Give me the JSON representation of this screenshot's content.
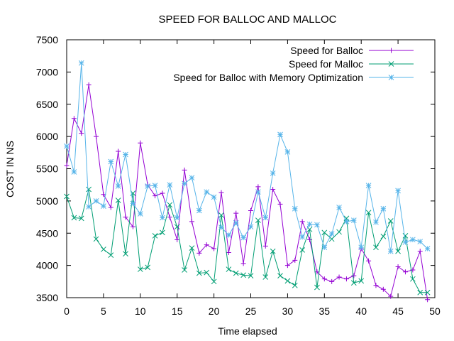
{
  "chart_data": {
    "type": "line",
    "title": "SPEED FOR BALLOC AND MALLOC",
    "xlabel": "Time elapsed",
    "ylabel": "COST IN NS",
    "xlim": [
      0,
      50
    ],
    "ylim": [
      3500,
      7500
    ],
    "xticks": [
      0,
      5,
      10,
      15,
      20,
      25,
      30,
      35,
      40,
      45,
      50
    ],
    "yticks": [
      3500,
      4000,
      4500,
      5000,
      5500,
      6000,
      6500,
      7000,
      7500
    ],
    "grid": false,
    "legend_position": "top-right",
    "x": [
      0,
      1,
      2,
      3,
      4,
      5,
      6,
      7,
      8,
      9,
      10,
      11,
      12,
      13,
      14,
      15,
      16,
      17,
      18,
      19,
      20,
      21,
      22,
      23,
      24,
      25,
      26,
      27,
      28,
      29,
      30,
      31,
      32,
      33,
      34,
      35,
      36,
      37,
      38,
      39,
      40,
      41,
      42,
      43,
      44,
      45,
      46,
      47,
      48,
      49
    ],
    "series": [
      {
        "name": "Speed for Balloc",
        "color": "#9400d3",
        "marker": "plus",
        "values": [
          5550,
          6280,
          6050,
          6800,
          6000,
          5100,
          4900,
          5770,
          4750,
          4600,
          5900,
          5250,
          5080,
          5120,
          4750,
          4400,
          5480,
          4680,
          4190,
          4320,
          4260,
          5130,
          4200,
          4810,
          4030,
          4850,
          5220,
          4300,
          5180,
          4950,
          4000,
          4080,
          4680,
          4400,
          3900,
          3790,
          3750,
          3820,
          3790,
          3840,
          4260,
          4070,
          3690,
          3630,
          3520,
          3980,
          3900,
          3930,
          4220,
          3470
        ]
      },
      {
        "name": "Speed for Malloc",
        "color": "#009e73",
        "marker": "cross",
        "values": [
          5070,
          4740,
          4730,
          5180,
          4410,
          4250,
          4160,
          5010,
          4180,
          5120,
          3940,
          3970,
          4460,
          4510,
          4940,
          4600,
          3930,
          4270,
          3880,
          3890,
          3750,
          4780,
          3940,
          3880,
          3850,
          3840,
          4700,
          3820,
          4220,
          3840,
          3760,
          3690,
          4240,
          4560,
          3660,
          4510,
          4410,
          4520,
          4730,
          3730,
          3760,
          4820,
          4280,
          4450,
          4690,
          4220,
          4460,
          3790,
          3580,
          3580
        ]
      },
      {
        "name": "Speed for Balloc with Memory Optimization",
        "color": "#56b4e9",
        "marker": "star",
        "values": [
          5850,
          5450,
          7140,
          4910,
          5000,
          4920,
          5610,
          5230,
          5720,
          4960,
          4800,
          5230,
          5240,
          4740,
          5250,
          4740,
          5270,
          5360,
          4850,
          5140,
          5060,
          4590,
          4470,
          4660,
          4430,
          4600,
          5140,
          4740,
          5430,
          6030,
          5760,
          4880,
          4440,
          4640,
          4630,
          4280,
          4490,
          4900,
          4680,
          4700,
          4280,
          5240,
          4670,
          4880,
          4220,
          5160,
          4360,
          4400,
          4370,
          4260
        ]
      }
    ]
  }
}
